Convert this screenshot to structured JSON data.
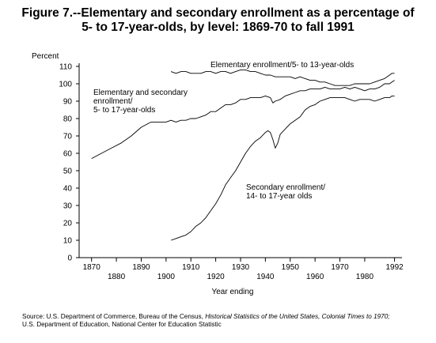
{
  "title_line1": "Figure 7.--Elementary and secondary enrollment as a percentage of",
  "title_line2": "5- to 17-year-olds, by level: 1869-70 to fall 1991",
  "source": {
    "prefix": "Source:  U.S. Department of Commerce, Bureau of the Census, ",
    "italic": "Historical Statistics of the United States, Colonial Times to 1970;",
    "line2": "U.S. Department of Education, National Center for Education Statistic"
  },
  "chart_data": {
    "type": "line",
    "title": "Figure 7.--Elementary and secondary enrollment as a percentage of 5- to 17-year-olds, by level: 1869-70 to fall 1991",
    "xlabel": "Year ending",
    "ylabel": "Percent",
    "xlim": [
      1865,
      1995
    ],
    "ylim": [
      0,
      110
    ],
    "x_ticks_upper": [
      "1870",
      "1890",
      "1910",
      "1930",
      "1950",
      "1970",
      "1992"
    ],
    "x_ticks_upper_values": [
      1870,
      1890,
      1910,
      1930,
      1950,
      1970,
      1992
    ],
    "x_ticks_lower": [
      "1880",
      "1900",
      "1920",
      "1940",
      "1960",
      "1980"
    ],
    "x_ticks_lower_values": [
      1880,
      1900,
      1920,
      1940,
      1960,
      1980
    ],
    "y_ticks": [
      "0",
      "10",
      "20",
      "30",
      "40",
      "50",
      "60",
      "70",
      "80",
      "90",
      "100",
      "110"
    ],
    "y_tick_values": [
      0,
      10,
      20,
      30,
      40,
      50,
      60,
      70,
      80,
      90,
      100,
      110
    ],
    "grid": false,
    "series": [
      {
        "name": "Elementary and secondary enrollment/ 5- to 17-year-olds",
        "label_lines": [
          "Elementary and secondary",
          "enrollment/",
          "5- to 17-year-olds"
        ],
        "x": [
          1870,
          1874,
          1878,
          1882,
          1886,
          1890,
          1894,
          1898,
          1900,
          1902,
          1904,
          1906,
          1908,
          1910,
          1912,
          1914,
          1916,
          1918,
          1920,
          1922,
          1924,
          1926,
          1928,
          1930,
          1932,
          1934,
          1936,
          1938,
          1940,
          1942,
          1943,
          1944,
          1946,
          1948,
          1950,
          1952,
          1954,
          1956,
          1958,
          1960,
          1962,
          1964,
          1966,
          1968,
          1970,
          1972,
          1974,
          1976,
          1978,
          1980,
          1982,
          1984,
          1986,
          1988,
          1990,
          1991,
          1992
        ],
        "y": [
          57,
          60,
          63,
          66,
          70,
          75,
          78,
          78,
          78,
          79,
          78,
          79,
          79,
          80,
          80,
          81,
          82,
          84,
          84,
          86,
          88,
          88,
          89,
          91,
          91,
          92,
          92,
          92,
          93,
          92,
          89,
          90,
          91,
          93,
          94,
          95,
          96,
          96,
          97,
          97,
          97,
          98,
          97,
          97,
          97,
          98,
          97,
          98,
          97,
          96,
          97,
          97,
          98,
          100,
          100,
          101,
          102
        ]
      },
      {
        "name": "Elementary enrollment/5- to 13-year-olds",
        "label_lines": [
          "Elementary enrollment/5- to 13-year-olds"
        ],
        "x": [
          1902,
          1904,
          1906,
          1908,
          1910,
          1912,
          1914,
          1916,
          1918,
          1920,
          1922,
          1924,
          1926,
          1928,
          1930,
          1932,
          1934,
          1936,
          1938,
          1940,
          1942,
          1944,
          1946,
          1948,
          1950,
          1952,
          1954,
          1956,
          1958,
          1960,
          1962,
          1964,
          1966,
          1968,
          1970,
          1972,
          1974,
          1976,
          1978,
          1980,
          1982,
          1984,
          1986,
          1988,
          1990,
          1991,
          1992
        ],
        "y": [
          107,
          106,
          107,
          107,
          106,
          106,
          106,
          107,
          107,
          106,
          107,
          107,
          106,
          107,
          108,
          108,
          107,
          107,
          106,
          105,
          105,
          104,
          104,
          104,
          104,
          103,
          104,
          103,
          102,
          102,
          101,
          101,
          100,
          99,
          99,
          99,
          99,
          100,
          100,
          100,
          100,
          101,
          102,
          103,
          105,
          106,
          106
        ]
      },
      {
        "name": "Secondary enrollment/ 14- to 17-year olds",
        "label_lines": [
          "Secondary enrollment/",
          "14- to 17-year olds"
        ],
        "x": [
          1902,
          1904,
          1906,
          1908,
          1910,
          1912,
          1914,
          1916,
          1918,
          1920,
          1922,
          1924,
          1926,
          1928,
          1930,
          1932,
          1934,
          1936,
          1938,
          1940,
          1941,
          1942,
          1943,
          1944,
          1945,
          1946,
          1948,
          1950,
          1952,
          1954,
          1956,
          1958,
          1960,
          1962,
          1964,
          1966,
          1968,
          1970,
          1972,
          1974,
          1976,
          1978,
          1980,
          1982,
          1984,
          1986,
          1988,
          1990,
          1991,
          1992
        ],
        "y": [
          10,
          11,
          12,
          13,
          15,
          18,
          20,
          23,
          27,
          31,
          36,
          42,
          46,
          50,
          55,
          60,
          64,
          67,
          69,
          72,
          73,
          72,
          68,
          63,
          66,
          71,
          74,
          77,
          79,
          81,
          85,
          87,
          88,
          90,
          91,
          92,
          92,
          92,
          92,
          91,
          90,
          91,
          91,
          91,
          90,
          91,
          92,
          92,
          93,
          93
        ]
      }
    ]
  }
}
